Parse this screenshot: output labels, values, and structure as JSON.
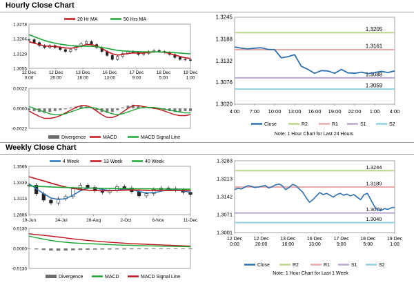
{
  "sections": {
    "hourly_title": "Hourly Close Chart",
    "weekly_title": "Weekly Close Chart"
  },
  "colors": {
    "red": "#c0131b",
    "green": "#1aa533",
    "blue": "#2f74b8",
    "gray": "#6d6d6d",
    "r2": "#b9d58a",
    "r1": "#e9a8a8",
    "s1": "#b8a6cf",
    "s2": "#8fd1de",
    "close": "#2b6fb0"
  },
  "chart_data": [
    {
      "id": "hourly_price",
      "type": "line",
      "title": "Hourly Close Chart",
      "y_ticks": [
        "1.3278",
        "1.3204",
        "1.3129",
        "1.3055"
      ],
      "ylim": [
        1.3055,
        1.3278
      ],
      "x_ticks": [
        "12 Dec\n0:00",
        "12 Dec\n20:00",
        "13 Dec\n16:00",
        "16 Dec\n13:00",
        "17 Dec\n9:00",
        "18 Dec\n5:00",
        "19 Dec\n1:00"
      ],
      "legend": [
        "20 Hr MA",
        "50 Hrs MA"
      ],
      "series": [
        {
          "name": "Price",
          "values": [
            1.32,
            1.3185,
            1.317,
            1.316,
            1.317,
            1.316,
            1.315,
            1.314,
            1.315,
            1.3165,
            1.318,
            1.319,
            1.3175,
            1.316,
            1.314,
            1.312,
            1.31,
            1.3115,
            1.313,
            1.314,
            1.3135,
            1.3125,
            1.313,
            1.314,
            1.3145,
            1.314,
            1.3135,
            1.3125,
            1.311,
            1.31,
            1.3098,
            1.3095
          ]
        },
        {
          "name": "20 Hr MA",
          "values": [
            1.319,
            1.3182,
            1.3175,
            1.3168,
            1.3166,
            1.3165,
            1.3162,
            1.3158,
            1.3156,
            1.316,
            1.3168,
            1.3175,
            1.3175,
            1.3168,
            1.3155,
            1.314,
            1.3128,
            1.3122,
            1.3125,
            1.313,
            1.3133,
            1.3132,
            1.3132,
            1.3135,
            1.3138,
            1.3138,
            1.3136,
            1.313,
            1.3122,
            1.3115,
            1.3108,
            1.3105
          ]
        },
        {
          "name": "50 Hrs MA",
          "values": [
            1.3225,
            1.3215,
            1.3205,
            1.3195,
            1.3188,
            1.3182,
            1.3177,
            1.3173,
            1.317,
            1.3168,
            1.3167,
            1.3167,
            1.3166,
            1.3164,
            1.316,
            1.3156,
            1.315,
            1.3146,
            1.3143,
            1.3141,
            1.314,
            1.3139,
            1.3138,
            1.3138,
            1.3138,
            1.3138,
            1.3137,
            1.3136,
            1.3134,
            1.3132,
            1.313,
            1.3128
          ]
        }
      ]
    },
    {
      "id": "hourly_macd",
      "type": "line",
      "y_ticks": [
        "0.0022",
        "0.0000",
        "-0.0022"
      ],
      "ylim": [
        -0.0022,
        0.0022
      ],
      "legend": [
        "Divergence",
        "MACD",
        "MACD Signal Line"
      ],
      "series": [
        {
          "name": "Divergence",
          "values": [
            -0.0002,
            -0.0003,
            -0.0004,
            -0.0005,
            -0.0004,
            -0.0003,
            -0.0002,
            -0.0001,
            0.0001,
            0.0002,
            0.0003,
            0.0002,
            0.0001,
            -0.0002,
            -0.0004,
            -0.0005,
            -0.0004,
            -0.0002,
            0.0001,
            0.0003,
            0.0004,
            0.0003,
            0.0002,
            0.0001,
            0.0,
            -0.0001,
            -0.0002,
            -0.0003,
            -0.0004,
            -0.0004,
            -0.0003,
            -0.0003
          ]
        },
        {
          "name": "MACD",
          "values": [
            -0.0003,
            -0.0006,
            -0.0009,
            -0.0011,
            -0.0011,
            -0.001,
            -0.0008,
            -0.0005,
            -0.0002,
            0.0001,
            0.0003,
            0.0003,
            0.0001,
            -0.0003,
            -0.0007,
            -0.001,
            -0.001,
            -0.0008,
            -0.0004,
            0.0,
            0.0003,
            0.0003,
            0.0002,
            0.0001,
            0.0,
            -0.0001,
            -0.0003,
            -0.0005,
            -0.0007,
            -0.0008,
            -0.0008,
            -0.0007
          ]
        },
        {
          "name": "MACD Signal Line",
          "values": [
            0.0002,
            0.0,
            -0.0002,
            -0.0004,
            -0.0006,
            -0.0007,
            -0.0007,
            -0.0006,
            -0.0004,
            -0.0002,
            0.0,
            0.0001,
            0.0001,
            0.0,
            -0.0002,
            -0.0004,
            -0.0006,
            -0.0007,
            -0.0006,
            -0.0004,
            -0.0002,
            0.0,
            0.0001,
            0.0001,
            0.0001,
            0.0,
            -0.0001,
            -0.0002,
            -0.0003,
            -0.0004,
            -0.0005,
            -0.0005
          ]
        }
      ]
    },
    {
      "id": "hourly_pivot",
      "type": "line",
      "y_ticks": [
        "1.3245",
        "1.3188",
        "1.3132",
        "1.3076",
        "1.3020"
      ],
      "ylim": [
        1.302,
        1.3245
      ],
      "x_ticks": [
        "4:00",
        "7:00",
        "10:00",
        "13:00",
        "16:00",
        "19:00",
        "22:00",
        "1:00",
        "4:00"
      ],
      "levels": [
        {
          "name": "R2",
          "value": 1.3205,
          "label": "1.3205"
        },
        {
          "name": "R1",
          "value": 1.3161,
          "label": "1.3161"
        },
        {
          "name": "S1",
          "value": 1.3088,
          "label": "1.3088"
        },
        {
          "name": "S2",
          "value": 1.3059,
          "label": "1.3059"
        }
      ],
      "legend": [
        "Close",
        "R2",
        "R1",
        "S1",
        "S2"
      ],
      "note": "Note: 1 Hour Chart for Last 24 Hours",
      "series": [
        {
          "name": "Close",
          "x": [
            0,
            1,
            2,
            3,
            4,
            5,
            6,
            7,
            8,
            9,
            10,
            11,
            12,
            13,
            14,
            15,
            16,
            17,
            18,
            19,
            20,
            21,
            22,
            23,
            24
          ],
          "values": [
            1.3168,
            1.3165,
            1.3163,
            1.3165,
            1.3166,
            1.3162,
            1.3161,
            1.314,
            1.3143,
            1.3148,
            1.3118,
            1.311,
            1.31,
            1.3107,
            1.3106,
            1.31,
            1.311,
            1.3101,
            1.31,
            1.3103,
            1.3099,
            1.3102,
            1.3105,
            1.3102,
            1.3106
          ]
        }
      ]
    },
    {
      "id": "weekly_price",
      "type": "line",
      "title": "Weekly Close Chart",
      "y_ticks": [
        "1.3566",
        "1.3339",
        "1.3113",
        "1.2886"
      ],
      "ylim": [
        1.2886,
        1.3566
      ],
      "x_ticks": [
        "19-Jun",
        "24-Jul",
        "28-Aug",
        "2-Oct",
        "6-Nov",
        "11-Dec"
      ],
      "legend": [
        "4 Week",
        "13 Week",
        "40 Week"
      ],
      "series": [
        {
          "name": "Price",
          "values": [
            1.33,
            1.318,
            1.309,
            1.305,
            1.311,
            1.314,
            1.325,
            1.33,
            1.327,
            1.322,
            1.32,
            1.323,
            1.328,
            1.326,
            1.321,
            1.315,
            1.318,
            1.324,
            1.326,
            1.325,
            1.323,
            1.32,
            1.317
          ]
        },
        {
          "name": "4 Week",
          "values": [
            1.332,
            1.325,
            1.318,
            1.312,
            1.31,
            1.311,
            1.316,
            1.322,
            1.326,
            1.326,
            1.324,
            1.3225,
            1.323,
            1.3245,
            1.324,
            1.321,
            1.319,
            1.3195,
            1.3215,
            1.3235,
            1.324,
            1.322,
            1.32
          ]
        },
        {
          "name": "13 Week",
          "values": [
            1.342,
            1.339,
            1.336,
            1.333,
            1.33,
            1.3275,
            1.3255,
            1.324,
            1.323,
            1.3225,
            1.3222,
            1.3222,
            1.3225,
            1.323,
            1.3233,
            1.3232,
            1.3228,
            1.3225,
            1.3224,
            1.3225,
            1.3226,
            1.3225,
            1.3222
          ]
        },
        {
          "name": "40 Week",
          "values": [
            1.329,
            1.3285,
            1.328,
            1.3276,
            1.3272,
            1.3268,
            1.3265,
            1.3262,
            1.326,
            1.3258,
            1.3256,
            1.3254,
            1.3253,
            1.3252,
            1.3251,
            1.325,
            1.3249,
            1.3248,
            1.3247,
            1.3246,
            1.3245,
            1.3244,
            1.3243
          ]
        }
      ]
    },
    {
      "id": "weekly_macd",
      "type": "line",
      "y_ticks": [
        "0.0130",
        "0.0000",
        "-0.0130"
      ],
      "ylim": [
        -0.013,
        0.013
      ],
      "legend": [
        "Divergence",
        "MACD",
        "MACD Signal Line"
      ],
      "series": [
        {
          "name": "Divergence",
          "values": [
            -0.0002,
            -0.0006,
            -0.001,
            -0.0014,
            -0.0015,
            -0.0014,
            -0.0012,
            -0.001,
            -0.0009,
            -0.0008,
            -0.0007,
            -0.0007,
            -0.0006,
            -0.0006,
            -0.0005,
            -0.0005,
            -0.0005,
            -0.0004,
            -0.0004,
            -0.0004,
            -0.0004,
            -0.0004,
            -0.0004
          ]
        },
        {
          "name": "MACD",
          "values": [
            0.0095,
            0.009,
            0.0085,
            0.008,
            0.0074,
            0.0068,
            0.0062,
            0.0057,
            0.0052,
            0.0048,
            0.0044,
            0.004,
            0.0037,
            0.0034,
            0.0031,
            0.0029,
            0.0027,
            0.0025,
            0.0023,
            0.0021,
            0.0019,
            0.0017,
            0.0015
          ]
        },
        {
          "name": "MACD Signal Line",
          "values": [
            0.008,
            0.007,
            0.006,
            0.0052,
            0.0045,
            0.004,
            0.0036,
            0.0033,
            0.0031,
            0.0029,
            0.0027,
            0.0025,
            0.0023,
            0.0021,
            0.002,
            0.0018,
            0.0017,
            0.0016,
            0.0015,
            0.0014,
            0.0013,
            0.0012,
            0.0011
          ]
        }
      ]
    },
    {
      "id": "weekly_pivot",
      "type": "line",
      "y_ticks": [
        "1.3283",
        "1.3213",
        "1.3142",
        "1.3071",
        "1.3001"
      ],
      "ylim": [
        1.3001,
        1.3283
      ],
      "x_ticks": [
        "12 Dec\n0:00",
        "12 Dec\n20:00",
        "13 Dec\n16:00",
        "16 Dec\n13:00",
        "17 Dec\n9:00",
        "18 Dec\n5:00",
        "19 Dec\n1:00"
      ],
      "levels": [
        {
          "name": "R2",
          "value": 1.3244,
          "label": "1.3244"
        },
        {
          "name": "R1",
          "value": 1.318,
          "label": "1.3180"
        },
        {
          "name": "S1",
          "value": 1.3078,
          "label": "1.3078"
        },
        {
          "name": "S2",
          "value": 1.304,
          "label": "1.3040"
        }
      ],
      "legend": [
        "Close",
        "R2",
        "R1",
        "S1",
        "S2"
      ],
      "note": "Note: 1 Hour Chart for Last 1 Week",
      "series": [
        {
          "name": "Close",
          "values": [
            1.317,
            1.3175,
            1.3172,
            1.318,
            1.3185,
            1.3182,
            1.3178,
            1.318,
            1.3183,
            1.3186,
            1.3176,
            1.3181,
            1.3188,
            1.3192,
            1.3185,
            1.317,
            1.3178,
            1.319,
            1.3185,
            1.3172,
            1.316,
            1.3138,
            1.312,
            1.313,
            1.3145,
            1.3158,
            1.315,
            1.3155,
            1.3148,
            1.314,
            1.315,
            1.3155,
            1.3148,
            1.3152,
            1.3145,
            1.315,
            1.314,
            1.313,
            1.315,
            1.3155,
            1.313,
            1.3105,
            1.309,
            1.3088,
            1.3095,
            1.3092,
            1.3098,
            1.31
          ]
        }
      ]
    }
  ]
}
